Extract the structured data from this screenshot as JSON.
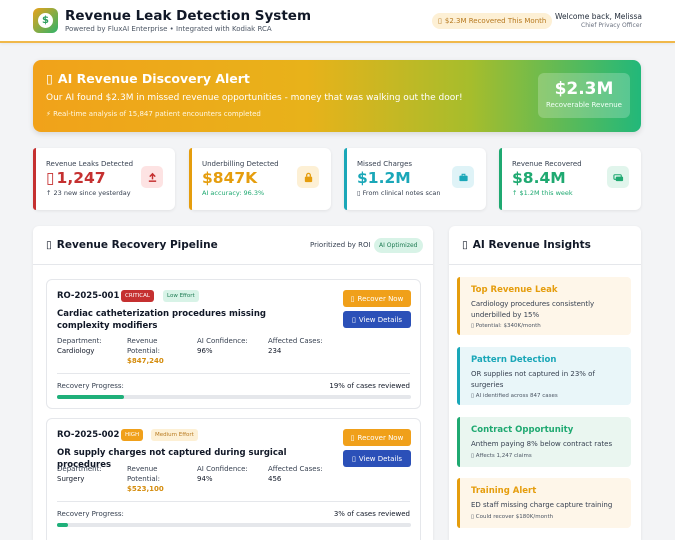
{
  "header": {
    "title": "Revenue Leak Detection System",
    "subtitle": "Powered by FluxAI Enterprise • Integrated with Kodiak RCA",
    "recovered_pill": "$2.3M Recovered This Month",
    "welcome": "Welcome back, Melissa",
    "role": "Chief Privacy Officer",
    "logo_icon": "dollar-coin-icon"
  },
  "alert": {
    "title": "AI Revenue Discovery Alert",
    "text": "Our AI found $2.3M in missed revenue opportunities - money that was walking out the door!",
    "foot": "⚡ Real-time analysis of 15,847 patient encounters completed",
    "box_value": "$2.3M",
    "box_label": "Recoverable Revenue"
  },
  "stats": [
    {
      "label": "Revenue Leaks Detected",
      "value": "1,247",
      "note": "↑ 23 new since yesterday",
      "color": "#c53030",
      "icon": "upload-icon"
    },
    {
      "label": "Underbilling Detected",
      "value": "$847K",
      "note": "AI accuracy: 96.3%",
      "color": "#e59d0d",
      "icon": "lock-icon"
    },
    {
      "label": "Missed Charges",
      "value": "$1.2M",
      "note": "From clinical notes scan",
      "color": "#1aa7b8",
      "icon": "briefcase-icon"
    },
    {
      "label": "Revenue Recovered",
      "value": "$8.4M",
      "note": "↑ $1.2M this week",
      "color": "#1fa971",
      "icon": "money-icon"
    }
  ],
  "pipeline": {
    "title": "Revenue Recovery Pipeline",
    "prioritized": "Prioritized by ROI",
    "ai_badge": "AI Optimized",
    "labels": {
      "department": "Department:",
      "revenue": "Revenue Potential:",
      "revenue_line1": "Revenue",
      "revenue_line2": "Potential:",
      "confidence": "AI Confidence:",
      "cases": "Affected Cases:",
      "progress": "Recovery Progress:",
      "recover_btn": "Recover Now",
      "view_btn": "View Details"
    },
    "items": [
      {
        "id": "RO-2025-001",
        "priority": "CRITICAL",
        "effort": "Low Effort",
        "title": "Cardiac catheterization procedures missing complexity modifiers",
        "department": "Cardiology",
        "revenue": "$847,240",
        "confidence": "96%",
        "cases": "234",
        "progress_text": "19% of cases reviewed",
        "progress": 0.19
      },
      {
        "id": "RO-2025-002",
        "priority": "HIGH",
        "effort": "Medium Effort",
        "title": "OR supply charges not captured during surgical procedures",
        "department": "Surgery",
        "revenue": "$523,100",
        "confidence": "94%",
        "cases": "456",
        "progress_text": "3% of cases reviewed",
        "progress": 0.03
      }
    ]
  },
  "insights": {
    "title": "AI Revenue Insights",
    "items": [
      {
        "title": "Top Revenue Leak",
        "text": "Cardiology procedures consistently underbilled by 15%",
        "foot": "Potential: $340K/month",
        "color": "#e59d0d",
        "bg": "#fef6e9"
      },
      {
        "title": "Pattern Detection",
        "text": "OR supplies not captured in 23% of surgeries",
        "foot": "AI identified across 847 cases",
        "color": "#1aa7b8",
        "bg": "#e9f6f9"
      },
      {
        "title": "Contract Opportunity",
        "text": "Anthem paying 8% below contract rates",
        "foot": "Affects 1,247 claims",
        "color": "#1fa971",
        "bg": "#eaf6f0"
      },
      {
        "title": "Training Alert",
        "text": "ED staff missing charge capture training",
        "foot": "Could recover $180K/month",
        "color": "#e59d0d",
        "bg": "#fef6e9"
      }
    ]
  }
}
